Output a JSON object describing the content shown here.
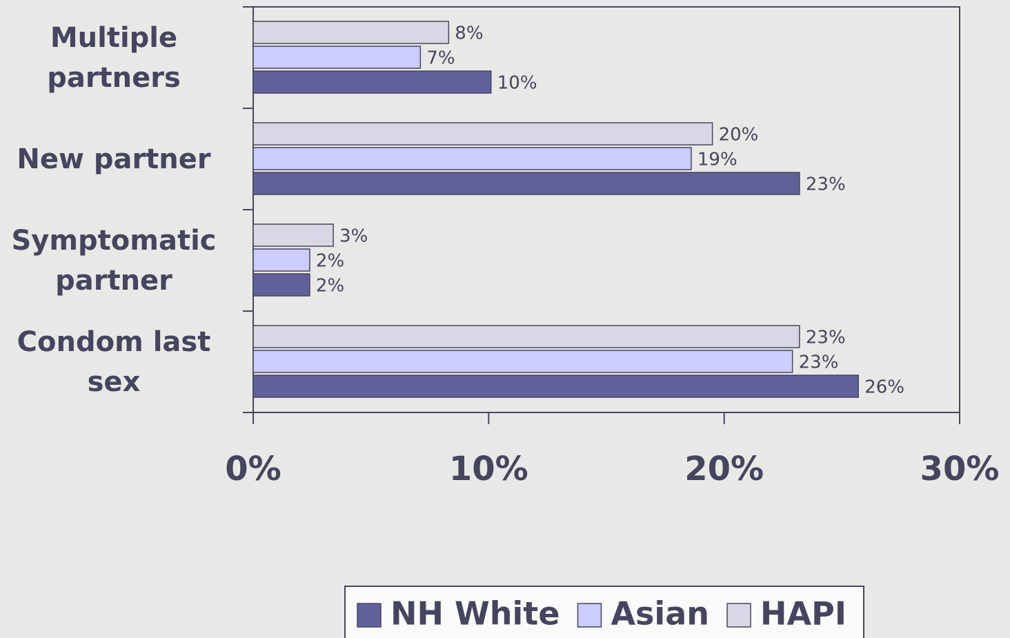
{
  "chart_data": {
    "type": "bar",
    "orientation": "horizontal",
    "categories": [
      "Multiple partners",
      "New partner",
      "Symptomatic partner",
      "Condom last sex"
    ],
    "series": [
      {
        "name": "NH White",
        "color": "#62609a",
        "values": [
          10.1,
          23.2,
          2.4,
          25.7
        ],
        "value_labels": [
          "10%",
          "23%",
          "2%",
          "26%"
        ]
      },
      {
        "name": "Asian",
        "color": "#ccccff",
        "values": [
          7.1,
          18.6,
          2.4,
          22.9
        ],
        "value_labels": [
          "7%",
          "19%",
          "2%",
          "23%"
        ]
      },
      {
        "name": "HAPI",
        "color": "#d8d8e4",
        "values": [
          8.3,
          19.5,
          3.4,
          23.2
        ],
        "value_labels": [
          "8%",
          "20%",
          "3%",
          "23%"
        ]
      }
    ],
    "xlim": [
      0,
      30
    ],
    "xticks": [
      {
        "value": 0,
        "label": "0%"
      },
      {
        "value": 10,
        "label": "10%"
      },
      {
        "value": 20,
        "label": "20%"
      },
      {
        "value": 30,
        "label": "30%"
      }
    ],
    "legend": "bottom"
  }
}
